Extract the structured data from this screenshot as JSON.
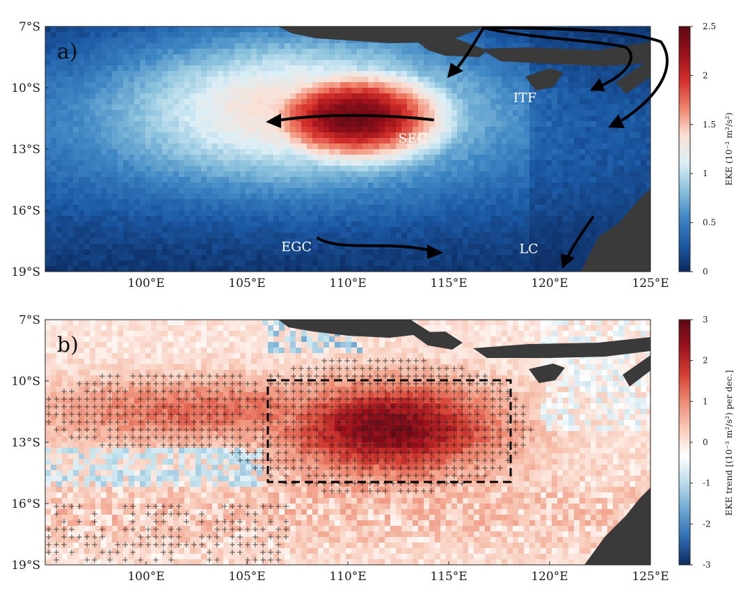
{
  "panels": [
    {
      "id": "a",
      "label": "a)",
      "currents": [
        {
          "name": "SEC",
          "lon": 112.5,
          "lat": -12.7
        },
        {
          "name": "ITF",
          "lon": 118.2,
          "lat": -10.7
        },
        {
          "name": "EGC",
          "lon": 106.7,
          "lat": -18.0
        },
        {
          "name": "LC",
          "lon": 118.5,
          "lat": -18.1
        }
      ],
      "colorbar": {
        "label": "EKE (10⁻² m²/s²)",
        "min": 0,
        "max": 2.5,
        "ticks": [
          "0",
          "0.5",
          "1",
          "1.5",
          "2",
          "2.5"
        ],
        "colors": [
          "#0c2a5e",
          "#1c5aa6",
          "#3f87c4",
          "#8cc2dd",
          "#dbeff7",
          "#fbe0d4",
          "#f0846c",
          "#d42f2a",
          "#99101b",
          "#5e0914"
        ]
      }
    },
    {
      "id": "b",
      "label": "b)",
      "colorbar": {
        "label": "EKE trend [(10⁻³ m²/s²) per dec.]",
        "min": -3,
        "max": 3,
        "ticks": [
          "-3",
          "-2",
          "-1",
          "0",
          "1",
          "2",
          "3"
        ],
        "colors": [
          "#0c2a5e",
          "#2e6db4",
          "#6ba6d2",
          "#b9dcea",
          "#ffffff",
          "#f8c9b7",
          "#ee8a72",
          "#d43e32",
          "#9c111c",
          "#5e0914"
        ]
      },
      "region_box": {
        "lon_min": 106,
        "lon_max": 118,
        "lat_min": -15,
        "lat_max": -10
      }
    }
  ],
  "axes": {
    "lon_ticks": [
      "100°E",
      "105°E",
      "110°E",
      "115°E",
      "120°E",
      "125°E"
    ],
    "lat_ticks": [
      "7°S",
      "10°S",
      "13°S",
      "16°S",
      "19°S"
    ],
    "lon_range": [
      95,
      125
    ],
    "lat_range": [
      -19,
      -7
    ]
  },
  "colors": {
    "land": "#3a3a3a"
  }
}
